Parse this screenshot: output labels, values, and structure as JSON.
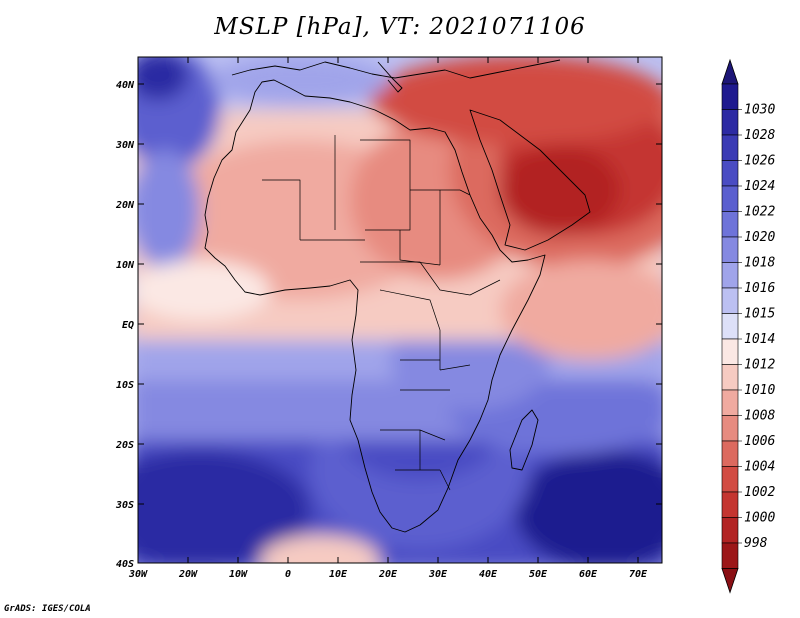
{
  "title": "MSLP [hPa], VT: 2021071106",
  "credit": "GrADS: IGES/COLA",
  "lat_ticks": [
    "40N",
    "30N",
    "20N",
    "10N",
    "EQ",
    "10S",
    "20S",
    "30S",
    "40S"
  ],
  "lon_ticks": [
    "30W",
    "20W",
    "10W",
    "0",
    "10E",
    "20E",
    "30E",
    "40E",
    "50E",
    "60E",
    "70E"
  ],
  "colorbar": {
    "levels": [
      "1030",
      "1028",
      "1026",
      "1024",
      "1022",
      "1020",
      "1018",
      "1016",
      "1015",
      "1014",
      "1012",
      "1010",
      "1008",
      "1006",
      "1004",
      "1002",
      "1000",
      "998"
    ],
    "colors": [
      "#1f1a8f",
      "#2c2aa3",
      "#3a3ab4",
      "#4a4cc3",
      "#5b5fcf",
      "#6e73d9",
      "#8589e1",
      "#a0a4ea",
      "#bcc0f2",
      "#dde0f8",
      "#fbe8e4",
      "#f6cbc2",
      "#f0aaa0",
      "#e78b80",
      "#dc6a5f",
      "#d24c43",
      "#c43530",
      "#b22424",
      "#9c1719"
    ],
    "tip_top": "#1d1677",
    "tip_bottom": "#8a0f14"
  },
  "map": {
    "lon_range": [
      -30,
      75
    ],
    "lat_range": [
      -40,
      45
    ],
    "ocean_color": "#bcc0f2",
    "coastline_color": "#000000"
  }
}
